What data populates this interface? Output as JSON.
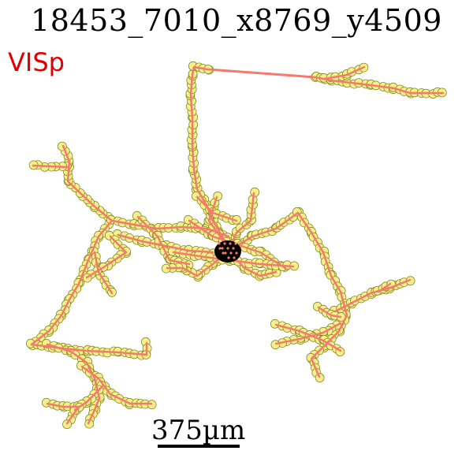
{
  "title": "18453_7010_x8769_y4509",
  "region_label": "VISp",
  "scale_bar": {
    "label": "375µm"
  },
  "colors": {
    "region": "#e00000",
    "axon_line": "#f47a6e",
    "node_fill": "#f6f08a",
    "node_stroke": "#8a8a2a",
    "soma": "#000000"
  }
}
